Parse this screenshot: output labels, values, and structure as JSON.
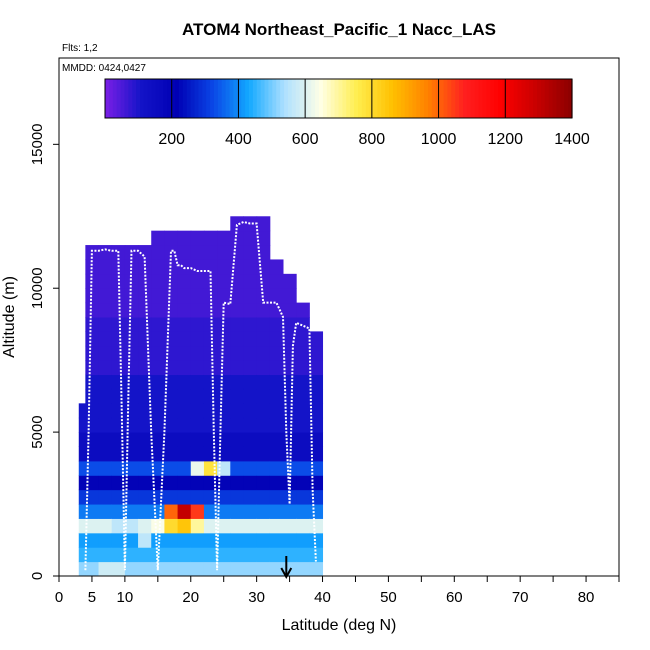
{
  "chart_data": {
    "type": "heatmap",
    "title": "ATOM4 Northeast_Pacific_1 Nacc_LAS",
    "flights_note": "Flts: 1,2",
    "mmdd_note": "MMDD: 0424,0427",
    "xlabel": "Latitude (deg N)",
    "ylabel": "Altitude (m)",
    "xlim": [
      0,
      85
    ],
    "ylim": [
      0,
      18000
    ],
    "xticks": [
      0,
      5,
      10,
      20,
      30,
      40,
      50,
      60,
      70,
      80
    ],
    "xtick_labels": [
      "0",
      "5",
      "10",
      "20",
      "30",
      "40",
      "50",
      "60",
      "70",
      "80"
    ],
    "xminor_ticks": [
      15,
      25,
      35,
      45,
      55,
      65,
      75,
      85
    ],
    "yticks": [
      0,
      5000,
      10000,
      15000
    ],
    "ytick_labels": [
      "0",
      "5000",
      "10000",
      "15000"
    ],
    "colorbar": {
      "ticks": [
        200,
        400,
        600,
        800,
        1000,
        1200,
        1400
      ],
      "tick_labels": [
        "200",
        "400",
        "600",
        "800",
        "1000",
        "1200",
        "1400"
      ],
      "range": [
        0,
        1400
      ],
      "colors": [
        "#7b1fe6",
        "#1414c8",
        "#0000b4",
        "#0a46e6",
        "#12a8ff",
        "#aee0ff",
        "#ffffe6",
        "#ffee50",
        "#ffc000",
        "#ff8000",
        "#ff2020",
        "#ff0000",
        "#c80000",
        "#8b0000"
      ]
    },
    "grid": false,
    "heatmap": {
      "lat_bins": [
        {
          "lat": 4,
          "max_alt": 6000
        },
        {
          "lat": 5,
          "max_alt": 11400
        },
        {
          "lat": 7,
          "max_alt": 11400
        },
        {
          "lat": 9,
          "max_alt": 11400
        },
        {
          "lat": 11,
          "max_alt": 11400
        },
        {
          "lat": 13,
          "max_alt": 11400
        },
        {
          "lat": 15,
          "max_alt": 11900
        },
        {
          "lat": 17,
          "max_alt": 11900
        },
        {
          "lat": 19,
          "max_alt": 11900
        },
        {
          "lat": 21,
          "max_alt": 11900
        },
        {
          "lat": 23,
          "max_alt": 11900
        },
        {
          "lat": 25,
          "max_alt": 11900
        },
        {
          "lat": 27,
          "max_alt": 12400
        },
        {
          "lat": 29,
          "max_alt": 12400
        },
        {
          "lat": 31,
          "max_alt": 12400
        },
        {
          "lat": 33,
          "max_alt": 11000
        },
        {
          "lat": 35,
          "max_alt": 10500
        },
        {
          "lat": 37,
          "max_alt": 9500
        },
        {
          "lat": 39,
          "max_alt": 8500
        }
      ],
      "alt_step": 500,
      "layers": [
        {
          "alt": 0,
          "value": 520
        },
        {
          "alt": 500,
          "value": 450
        },
        {
          "alt": 1000,
          "value": 420
        },
        {
          "alt": 1500,
          "value": 600
        },
        {
          "alt": 2000,
          "value": 380
        },
        {
          "alt": 2500,
          "value": 300
        },
        {
          "alt": 3000,
          "value": 200
        },
        {
          "alt": 3500,
          "value": 330
        },
        {
          "alt": 4000,
          "value": 150
        },
        {
          "alt": 5000,
          "value": 110
        },
        {
          "alt": 7000,
          "value": 80
        },
        {
          "alt": 9000,
          "value": 60
        }
      ],
      "hotspots": [
        {
          "lat": 19,
          "alt": 2250,
          "value": 1300
        },
        {
          "lat": 17,
          "alt": 2250,
          "value": 1000
        },
        {
          "lat": 21,
          "alt": 2250,
          "value": 1050
        },
        {
          "lat": 17,
          "alt": 1750,
          "value": 800
        },
        {
          "lat": 19,
          "alt": 1750,
          "value": 850
        },
        {
          "lat": 21,
          "alt": 1750,
          "value": 700
        },
        {
          "lat": 23,
          "alt": 3750,
          "value": 780
        },
        {
          "lat": 21,
          "alt": 3750,
          "value": 620
        },
        {
          "lat": 25,
          "alt": 3750,
          "value": 560
        },
        {
          "lat": 15,
          "alt": 1750,
          "value": 640
        },
        {
          "lat": 9,
          "alt": 1750,
          "value": 560
        },
        {
          "lat": 11,
          "alt": 1750,
          "value": 560
        },
        {
          "lat": 7,
          "alt": 250,
          "value": 580
        },
        {
          "lat": 9,
          "alt": 250,
          "value": 580
        },
        {
          "lat": 13,
          "alt": 1250,
          "value": 560
        }
      ]
    },
    "flight_track": {
      "lat": [
        4,
        4.5,
        5,
        6,
        7,
        8,
        9,
        9.5,
        10,
        10.5,
        11,
        12,
        13,
        14,
        15,
        16,
        17,
        17.5,
        18,
        18.5,
        19,
        20,
        21,
        22,
        23,
        23.5,
        24,
        24.5,
        25,
        26,
        27,
        28,
        29,
        30,
        31,
        32,
        33,
        34,
        34.5,
        35,
        35.5,
        36,
        37,
        38,
        38.5,
        39
      ],
      "alt": [
        200,
        5000,
        11300,
        11300,
        11350,
        11300,
        11300,
        6000,
        200,
        6000,
        11300,
        11300,
        11100,
        5000,
        200,
        5000,
        11300,
        11300,
        10800,
        10800,
        10700,
        10700,
        10600,
        10600,
        10600,
        5000,
        200,
        5000,
        9500,
        9450,
        12200,
        12300,
        12250,
        12250,
        9500,
        9500,
        9500,
        9000,
        5000,
        2500,
        8000,
        8800,
        8700,
        8600,
        3000,
        500
      ]
    },
    "arrow_lat": 34.5
  }
}
